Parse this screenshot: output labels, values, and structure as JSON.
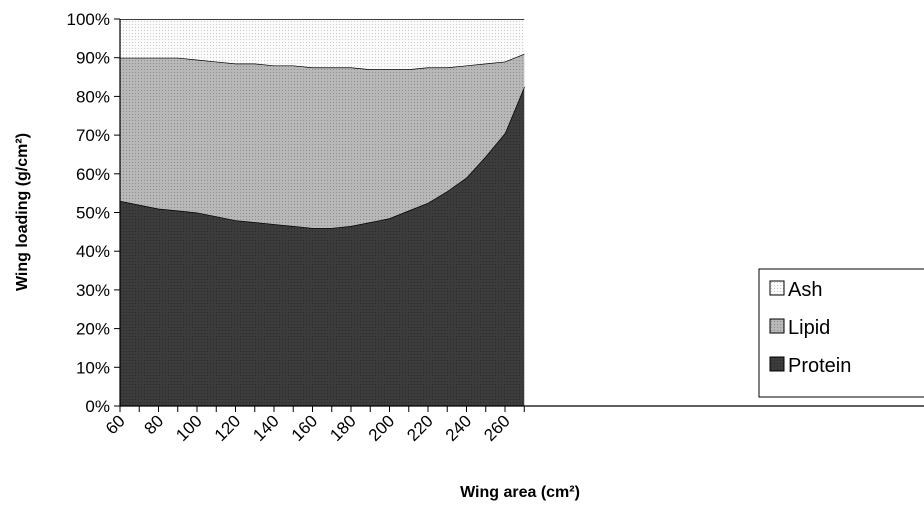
{
  "chart_data": {
    "type": "area",
    "stacked": "percent",
    "xlabel": "Wing area (cm²)",
    "ylabel": "Wing loading (g/cm²)",
    "xlim": [
      60,
      270
    ],
    "ylim": [
      0,
      100
    ],
    "x_ticks": [
      60,
      80,
      100,
      120,
      140,
      160,
      180,
      200,
      220,
      240,
      260
    ],
    "x_tick_labels": [
      "60",
      "80",
      "100",
      "120",
      "140",
      "160",
      "180",
      "200",
      "220",
      "240",
      "260"
    ],
    "y_ticks": [
      0,
      10,
      20,
      30,
      40,
      50,
      60,
      70,
      80,
      90,
      100
    ],
    "y_tick_labels": [
      "0%",
      "10%",
      "20%",
      "30%",
      "40%",
      "50%",
      "60%",
      "70%",
      "80%",
      "90%",
      "100%"
    ],
    "x": [
      60,
      70,
      80,
      90,
      100,
      110,
      120,
      130,
      140,
      150,
      160,
      170,
      180,
      190,
      200,
      210,
      220,
      230,
      240,
      250,
      260,
      270
    ],
    "series": [
      {
        "name": "Protein",
        "values": [
          53,
          52,
          51,
          50.5,
          50,
          49,
          48,
          47.5,
          47,
          46.5,
          46,
          46,
          46.5,
          47.5,
          48.5,
          50.5,
          52.5,
          55.5,
          59,
          64.5,
          70.5,
          82.5
        ]
      },
      {
        "name": "Lipid",
        "values": [
          37,
          38,
          39,
          39.5,
          39.5,
          40,
          40.5,
          41,
          41,
          41.5,
          41.5,
          41.5,
          41,
          39.5,
          38.5,
          36.5,
          35,
          32,
          29,
          24,
          18.5,
          8.5
        ]
      },
      {
        "name": "Ash",
        "values": [
          10,
          10,
          10,
          10,
          10.5,
          11,
          11.5,
          11.5,
          12,
          12,
          12.5,
          12.5,
          12.5,
          13,
          13,
          13,
          12.5,
          12.5,
          12,
          11.5,
          11,
          9
        ]
      }
    ],
    "legend": {
      "position": "right",
      "order": [
        "Ash",
        "Lipid",
        "Protein"
      ]
    },
    "colors": {
      "Protein": "#3a3a3a",
      "Lipid": "#b4b4b4",
      "Ash": "#f3f3f3"
    },
    "grid": false
  }
}
